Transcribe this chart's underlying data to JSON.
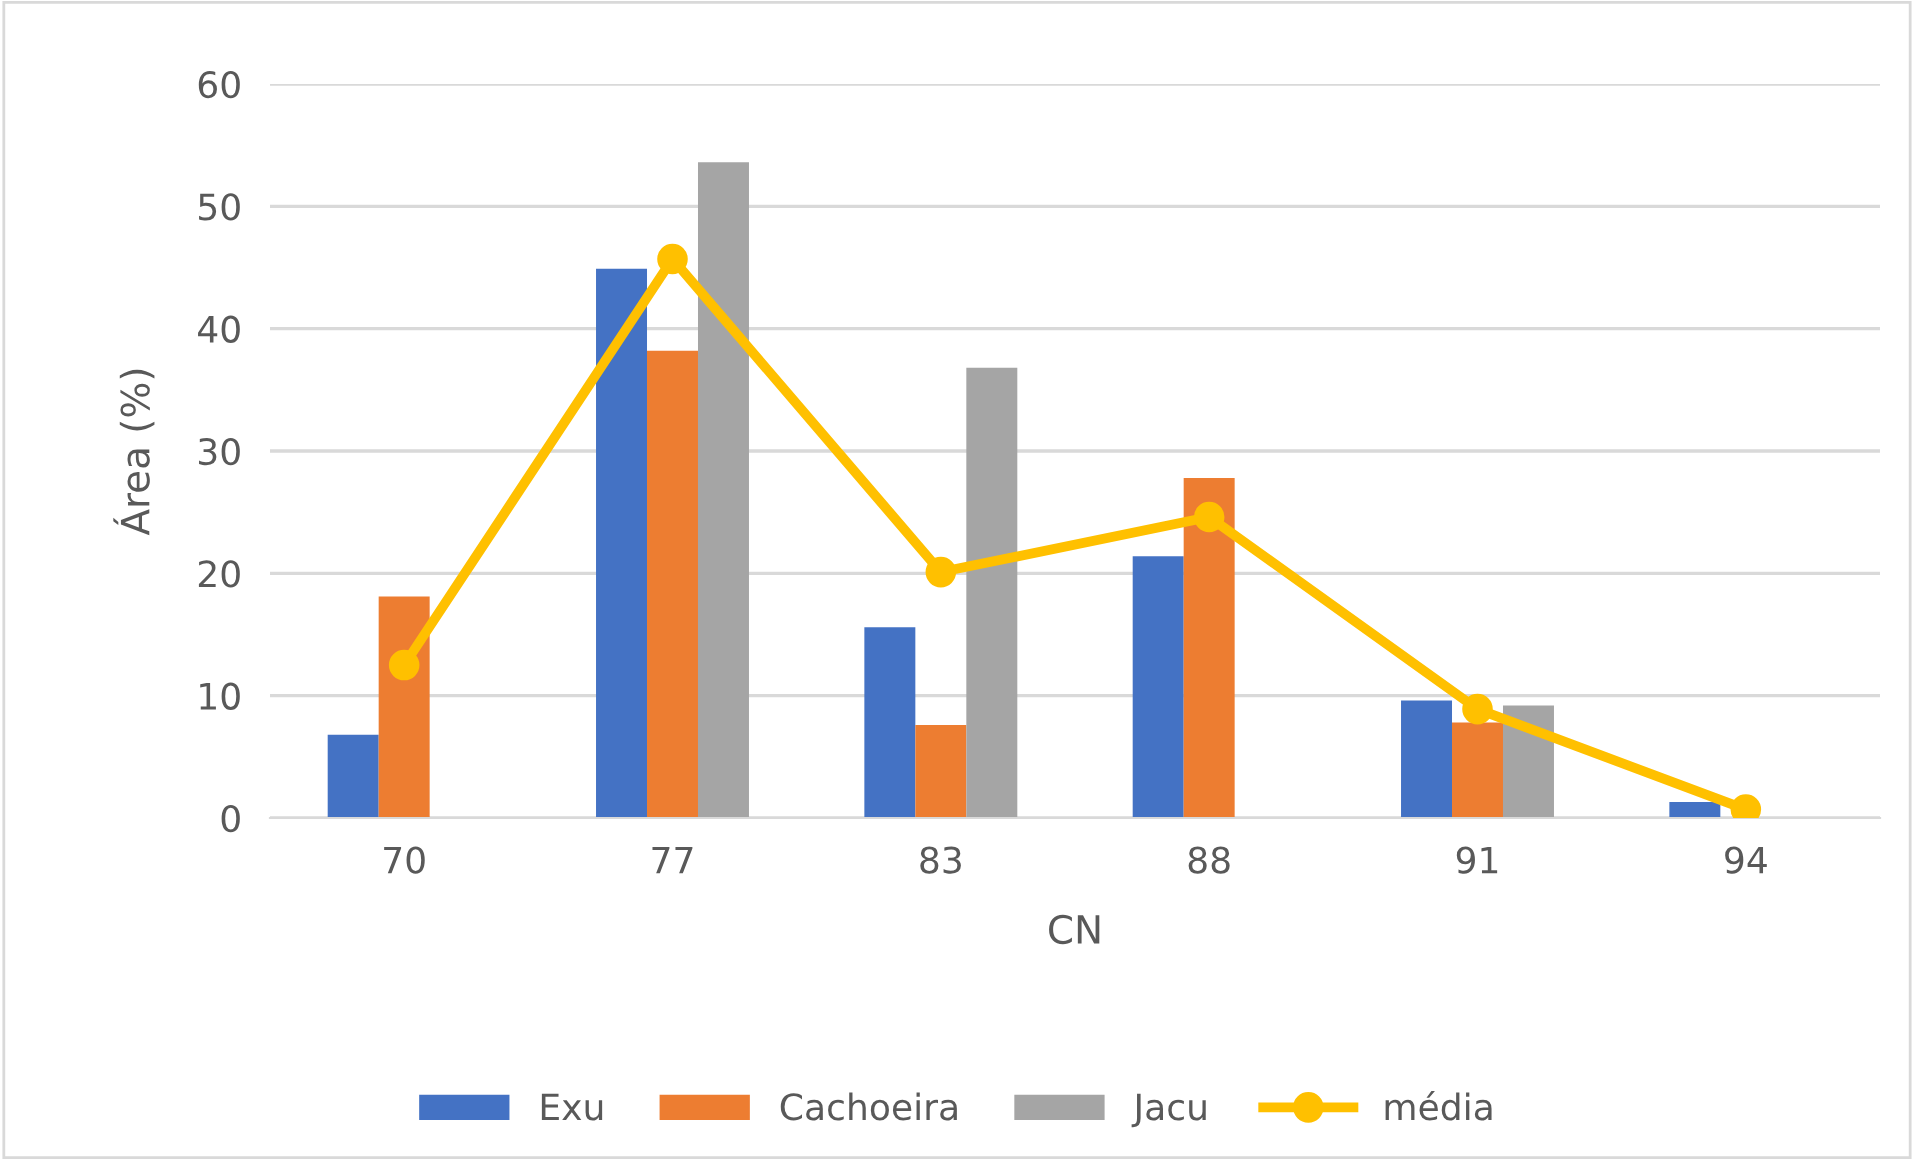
{
  "chart_data": {
    "type": "bar",
    "xlabel": "CN",
    "ylabel": "Área (%)",
    "categories": [
      "70",
      "77",
      "83",
      "88",
      "91",
      "94"
    ],
    "series": [
      {
        "name": "Exu",
        "color": "#4472c4",
        "values": [
          6.8,
          44.9,
          15.6,
          21.4,
          9.6,
          1.3
        ]
      },
      {
        "name": "Cachoeira",
        "color": "#ed7d31",
        "values": [
          18.1,
          38.2,
          7.6,
          27.8,
          7.8,
          null
        ]
      },
      {
        "name": "Jacu",
        "color": "#a5a5a5",
        "values": [
          null,
          53.6,
          36.8,
          null,
          9.2,
          null
        ]
      },
      {
        "name": "média",
        "type": "line",
        "color": "#ffc000",
        "marker": "circle",
        "values": [
          12.5,
          45.7,
          20.1,
          24.6,
          8.9,
          0.7
        ]
      }
    ],
    "ylim": [
      0,
      60
    ],
    "yticks": [
      0,
      10,
      20,
      30,
      40,
      50,
      60
    ],
    "grid": "y",
    "legend": "bottom"
  }
}
